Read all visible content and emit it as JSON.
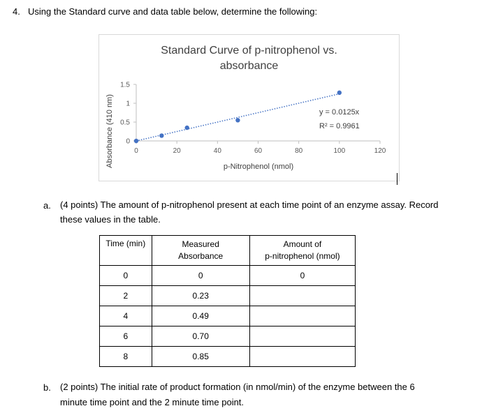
{
  "question": {
    "number": "4.",
    "text": "Using the Standard curve and data table below, determine the following:"
  },
  "chart_data": {
    "type": "scatter",
    "title_line1": "Standard Curve of p-nitrophenol vs.",
    "title_line2": "absorbance",
    "xlabel": "p-Nitrophenol (nmol)",
    "ylabel": "Absorbance (410 nm)",
    "xlim": [
      0,
      120
    ],
    "ylim": [
      0,
      1.5
    ],
    "x_ticks": [
      "0",
      "20",
      "40",
      "60",
      "80",
      "100",
      "120"
    ],
    "y_ticks": [
      "0",
      "0.5",
      "1",
      "1.5"
    ],
    "points": {
      "x": [
        0,
        12.5,
        25,
        50,
        100
      ],
      "y": [
        0,
        0.14,
        0.35,
        0.55,
        1.28
      ]
    },
    "trendline": {
      "slope": 0.0125,
      "intercept": 0
    },
    "equation": "y = 0.0125x",
    "r2": "R² = 0.9961",
    "marker_color": "#4472c4",
    "grid": false
  },
  "part_a": {
    "letter": "a.",
    "line1": "(4 points) The amount of p-nitrophenol present at each time point of an enzyme assay. Record",
    "line2": "these values in the table."
  },
  "table": {
    "headers": {
      "time": "Time (min)",
      "abs_line1": "Measured",
      "abs_line2": "Absorbance",
      "amt_line1": "Amount of",
      "amt_line2": "p-nitrophenol (nmol)"
    },
    "rows": [
      {
        "time": "0",
        "absorbance": "0",
        "amount": "0"
      },
      {
        "time": "2",
        "absorbance": "0.23",
        "amount": ""
      },
      {
        "time": "4",
        "absorbance": "0.49",
        "amount": ""
      },
      {
        "time": "6",
        "absorbance": "0.70",
        "amount": ""
      },
      {
        "time": "8",
        "absorbance": "0.85",
        "amount": ""
      }
    ]
  },
  "part_b": {
    "letter": "b.",
    "line1": "(2 points) The initial rate of product formation (in nmol/min) of the enzyme between the 6",
    "line2": "minute time point and the 2 minute time point."
  }
}
